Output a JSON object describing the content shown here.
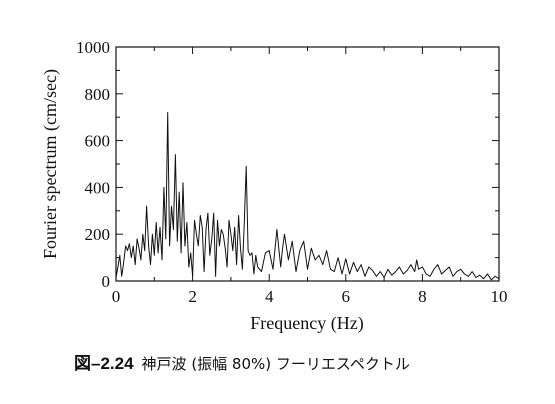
{
  "chart_data": {
    "type": "line",
    "title": "",
    "xlabel": "Frequency (Hz)",
    "ylabel": "Fourier spectrum (cm/sec)",
    "xlim": [
      0,
      10
    ],
    "ylim": [
      0,
      1000
    ],
    "x_ticks": [
      "0",
      "2",
      "4",
      "6",
      "8",
      "10"
    ],
    "y_ticks": [
      "0",
      "200",
      "400",
      "600",
      "800",
      "1000"
    ],
    "grid": false,
    "legend": "none",
    "series": [
      {
        "x": [
          0,
          0.05,
          0.1,
          0.15,
          0.2,
          0.25,
          0.3,
          0.35,
          0.4,
          0.45,
          0.5,
          0.55,
          0.6,
          0.65,
          0.7,
          0.75,
          0.8,
          0.85,
          0.9,
          0.95,
          1.0,
          1.05,
          1.1,
          1.15,
          1.2,
          1.25,
          1.3,
          1.35,
          1.4,
          1.45,
          1.5,
          1.55,
          1.6,
          1.65,
          1.7,
          1.75,
          1.8,
          1.85,
          1.9,
          1.95,
          2.0,
          2.05,
          2.1,
          2.15,
          2.2,
          2.25,
          2.3,
          2.35,
          2.4,
          2.45,
          2.5,
          2.55,
          2.6,
          2.65,
          2.7,
          2.75,
          2.8,
          2.85,
          2.9,
          2.95,
          3.0,
          3.05,
          3.1,
          3.15,
          3.2,
          3.25,
          3.3,
          3.35,
          3.4,
          3.45,
          3.5,
          3.55,
          3.6,
          3.65,
          3.7,
          3.8,
          3.9,
          4.0,
          4.1,
          4.2,
          4.3,
          4.35,
          4.4,
          4.5,
          4.6,
          4.7,
          4.8,
          4.9,
          5.0,
          5.1,
          5.2,
          5.3,
          5.4,
          5.5,
          5.6,
          5.7,
          5.8,
          5.9,
          6.0,
          6.1,
          6.2,
          6.3,
          6.4,
          6.5,
          6.6,
          6.7,
          6.8,
          6.9,
          7.0,
          7.1,
          7.2,
          7.3,
          7.4,
          7.5,
          7.6,
          7.7,
          7.8,
          7.85,
          7.9,
          8.0,
          8.1,
          8.2,
          8.3,
          8.4,
          8.5,
          8.6,
          8.7,
          8.8,
          8.9,
          9.0,
          9.1,
          9.2,
          9.3,
          9.4,
          9.5,
          9.6,
          9.7,
          9.8,
          9.9,
          10.0
        ],
        "y": [
          15,
          60,
          110,
          20,
          80,
          150,
          130,
          160,
          100,
          150,
          70,
          180,
          140,
          90,
          200,
          130,
          320,
          150,
          70,
          200,
          110,
          250,
          120,
          230,
          90,
          400,
          180,
          720,
          150,
          320,
          220,
          540,
          170,
          380,
          120,
          420,
          150,
          250,
          60,
          120,
          20,
          260,
          200,
          150,
          280,
          230,
          40,
          220,
          290,
          110,
          180,
          290,
          20,
          260,
          150,
          220,
          200,
          140,
          60,
          260,
          200,
          130,
          230,
          70,
          280,
          140,
          50,
          250,
          490,
          130,
          110,
          120,
          30,
          110,
          60,
          40,
          120,
          130,
          50,
          220,
          60,
          140,
          200,
          90,
          170,
          40,
          130,
          170,
          50,
          140,
          90,
          110,
          70,
          130,
          50,
          40,
          100,
          30,
          95,
          30,
          80,
          40,
          70,
          20,
          60,
          45,
          20,
          40,
          15,
          50,
          25,
          40,
          60,
          30,
          45,
          70,
          40,
          90,
          50,
          60,
          30,
          20,
          50,
          70,
          30,
          45,
          60,
          20,
          40,
          50,
          30,
          20,
          40,
          15,
          25,
          10,
          30,
          5,
          20,
          10
        ]
      }
    ]
  },
  "caption": {
    "figure_number": "図–2.24",
    "text": "神戸波 (振幅 80%) フーリエスペクトル"
  }
}
